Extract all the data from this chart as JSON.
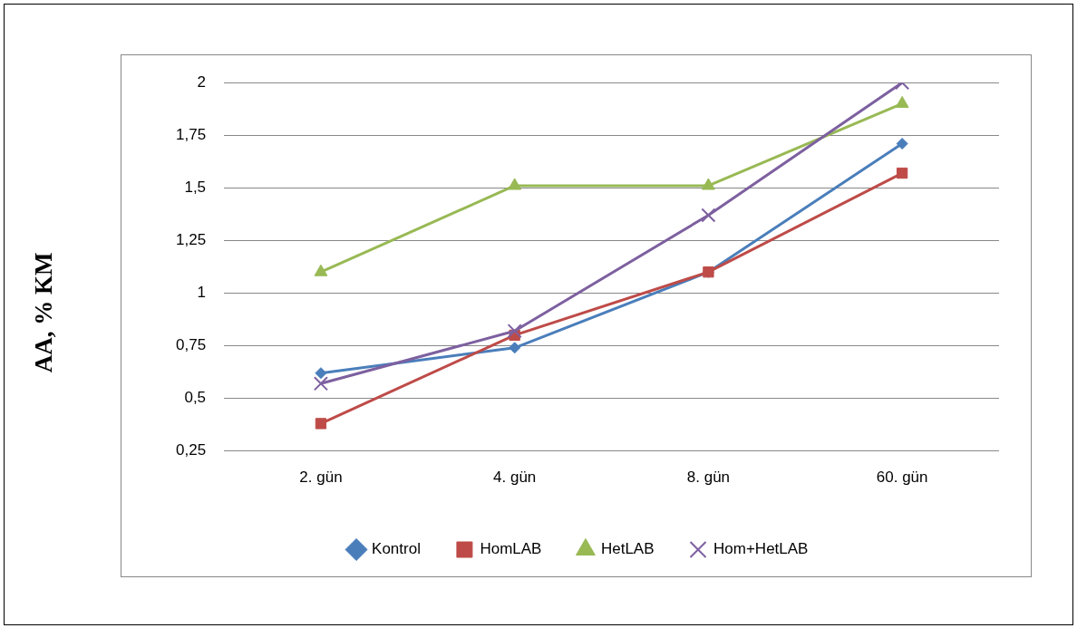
{
  "chart_data": {
    "type": "line",
    "ylabel": "AA, % KM",
    "categories": [
      "2. gün",
      "4. gün",
      "8. gün",
      "60. gün"
    ],
    "ylim": [
      0.25,
      2
    ],
    "yticks": [
      {
        "value": 0.25,
        "label": "0,25"
      },
      {
        "value": 0.5,
        "label": "0,5"
      },
      {
        "value": 0.75,
        "label": "0,75"
      },
      {
        "value": 1,
        "label": "1"
      },
      {
        "value": 1.25,
        "label": "1,25"
      },
      {
        "value": 1.5,
        "label": "1,5"
      },
      {
        "value": 1.75,
        "label": "1,75"
      },
      {
        "value": 2,
        "label": "2"
      }
    ],
    "grid": "y",
    "legend": "bottom",
    "line_style": "solid",
    "series": [
      {
        "name": "Kontrol",
        "color": "#4a7ebb",
        "marker": "diamond",
        "values": [
          0.62,
          0.74,
          1.1,
          1.71
        ]
      },
      {
        "name": "HomLAB",
        "color": "#be4b48",
        "marker": "square",
        "values": [
          0.38,
          0.8,
          1.1,
          1.57
        ]
      },
      {
        "name": "HetLAB",
        "color": "#98b954",
        "marker": "triangle",
        "values": [
          1.1,
          1.51,
          1.51,
          1.9
        ]
      },
      {
        "name": "Hom+HetLAB",
        "color": "#7d60a0",
        "marker": "cross",
        "values": [
          0.57,
          0.82,
          1.37,
          2
        ]
      }
    ]
  }
}
